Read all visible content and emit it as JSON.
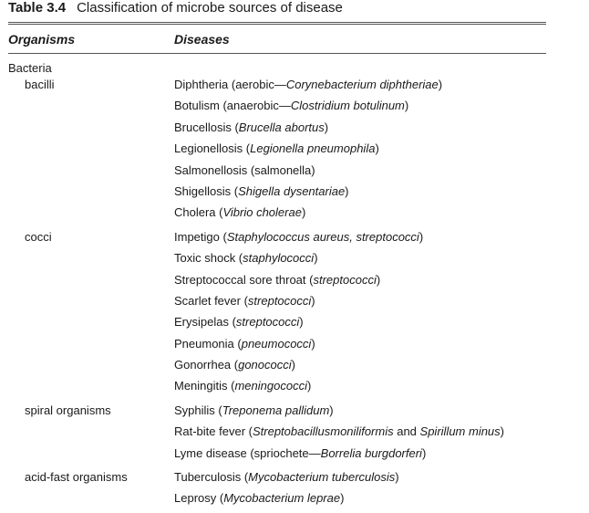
{
  "table": {
    "number": "Table 3.4",
    "title": "Classification of microbe sources of disease",
    "headers": {
      "organisms": "Organisms",
      "diseases": "Diseases"
    }
  },
  "rows": [
    {
      "org": "Bacteria",
      "level": 0,
      "parts": []
    },
    {
      "org": "bacilli",
      "level": 1,
      "parts": [
        {
          "t": "Diphtheria (aerobic—"
        },
        {
          "t": "Corynebacterium diphtheriae",
          "i": true
        },
        {
          "t": ")"
        }
      ]
    },
    {
      "org": "",
      "level": 1,
      "parts": [
        {
          "t": "Botulism (anaerobic—"
        },
        {
          "t": "Clostridium botulinum",
          "i": true
        },
        {
          "t": ")"
        }
      ]
    },
    {
      "org": "",
      "level": 1,
      "parts": [
        {
          "t": "Brucellosis ("
        },
        {
          "t": "Brucella abortus",
          "i": true
        },
        {
          "t": ")"
        }
      ]
    },
    {
      "org": "",
      "level": 1,
      "parts": [
        {
          "t": "Legionellosis ("
        },
        {
          "t": "Legionella pneumophila",
          "i": true
        },
        {
          "t": ")"
        }
      ]
    },
    {
      "org": "",
      "level": 1,
      "parts": [
        {
          "t": "Salmonellosis (salmonella)"
        }
      ]
    },
    {
      "org": "",
      "level": 1,
      "parts": [
        {
          "t": "Shigellosis ("
        },
        {
          "t": "Shigella dysentariae",
          "i": true
        },
        {
          "t": ")"
        }
      ]
    },
    {
      "org": "",
      "level": 1,
      "parts": [
        {
          "t": "Cholera ("
        },
        {
          "t": "Vibrio cholerae",
          "i": true
        },
        {
          "t": ")"
        }
      ]
    },
    {
      "org": "cocci",
      "level": 1,
      "gap": true,
      "parts": [
        {
          "t": "Impetigo ("
        },
        {
          "t": "Staphylococcus aureus, streptococci",
          "i": true
        },
        {
          "t": ")"
        }
      ]
    },
    {
      "org": "",
      "level": 1,
      "parts": [
        {
          "t": "Toxic shock ("
        },
        {
          "t": "staphylococci",
          "i": true
        },
        {
          "t": ")"
        }
      ]
    },
    {
      "org": "",
      "level": 1,
      "parts": [
        {
          "t": "Streptococcal sore throat ("
        },
        {
          "t": "streptococci",
          "i": true
        },
        {
          "t": ")"
        }
      ]
    },
    {
      "org": "",
      "level": 1,
      "parts": [
        {
          "t": "Scarlet fever ("
        },
        {
          "t": "streptococci",
          "i": true
        },
        {
          "t": ")"
        }
      ]
    },
    {
      "org": "",
      "level": 1,
      "parts": [
        {
          "t": "Erysipelas ("
        },
        {
          "t": "streptococci",
          "i": true
        },
        {
          "t": ")"
        }
      ]
    },
    {
      "org": "",
      "level": 1,
      "parts": [
        {
          "t": "Pneumonia ("
        },
        {
          "t": "pneumococci",
          "i": true
        },
        {
          "t": ")"
        }
      ]
    },
    {
      "org": "",
      "level": 1,
      "parts": [
        {
          "t": "Gonorrhea ("
        },
        {
          "t": "gonococci",
          "i": true
        },
        {
          "t": ")"
        }
      ]
    },
    {
      "org": "",
      "level": 1,
      "parts": [
        {
          "t": "Meningitis ("
        },
        {
          "t": "meningococci",
          "i": true
        },
        {
          "t": ")"
        }
      ]
    },
    {
      "org": "spiral organisms",
      "level": 1,
      "gap": true,
      "parts": [
        {
          "t": "Syphilis ("
        },
        {
          "t": "Treponema pallidum",
          "i": true
        },
        {
          "t": ")"
        }
      ]
    },
    {
      "org": "",
      "level": 1,
      "parts": [
        {
          "t": "Rat-bite fever ("
        },
        {
          "t": "Streptobacillusmoniliformis",
          "i": true
        },
        {
          "t": " and "
        },
        {
          "t": "Spirillum minus",
          "i": true
        },
        {
          "t": ")"
        }
      ]
    },
    {
      "org": "",
      "level": 1,
      "parts": [
        {
          "t": "Lyme disease (spriochete—"
        },
        {
          "t": "Borrelia burgdorferi",
          "i": true
        },
        {
          "t": ")"
        }
      ]
    },
    {
      "org": "acid-fast organisms",
      "level": 1,
      "gap": true,
      "parts": [
        {
          "t": "Tuberculosis ("
        },
        {
          "t": "Mycobacterium tuberculosis",
          "i": true
        },
        {
          "t": ")"
        }
      ]
    },
    {
      "org": "",
      "level": 1,
      "parts": [
        {
          "t": "Leprosy ("
        },
        {
          "t": "Mycobacterium leprae",
          "i": true
        },
        {
          "t": ")"
        }
      ]
    }
  ]
}
